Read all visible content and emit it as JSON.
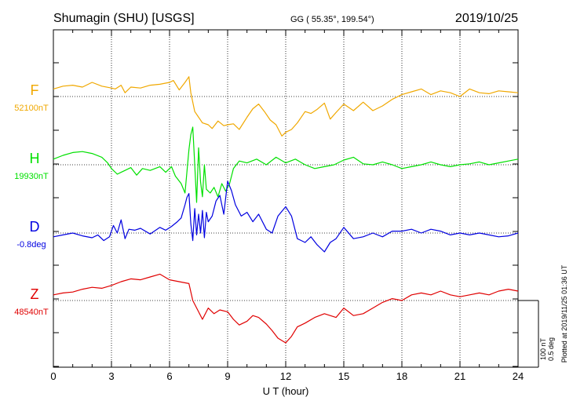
{
  "header": {
    "station": "Shumagin (SHU)  [USGS]",
    "coords": "GG ( 55.35°, 199.54°)",
    "date": "2019/10/25"
  },
  "chart_data": {
    "type": "line",
    "xlabel": "U T (hour)",
    "xlim": [
      0,
      24
    ],
    "xticks": [
      "0",
      "3",
      "6",
      "9",
      "12",
      "15",
      "18",
      "21",
      "24"
    ],
    "grid": true,
    "scale_bar": {
      "label1": "100 nT",
      "label2": "0.5 deg"
    },
    "plotted_note": "Plotted at 2019/11/25 01:36 UT",
    "series": [
      {
        "name": "F",
        "baseline_label": "52100nT",
        "color": "#f0a800",
        "x": [
          0,
          0.5,
          1,
          1.5,
          2,
          2.5,
          3,
          3.2,
          3.5,
          3.7,
          4,
          4.5,
          5,
          5.5,
          6,
          6.2,
          6.5,
          6.8,
          7,
          7.1,
          7.3,
          7.5,
          7.7,
          8,
          8.2,
          8.5,
          8.8,
          9,
          9.3,
          9.6,
          10,
          10.3,
          10.6,
          10.9,
          11.2,
          11.5,
          11.8,
          12,
          12.3,
          12.6,
          13,
          13.3,
          13.6,
          14,
          14.3,
          14.6,
          15,
          15.5,
          16,
          16.5,
          17,
          17.5,
          18,
          18.5,
          19,
          19.5,
          20,
          20.5,
          21,
          21.5,
          22,
          22.5,
          23,
          23.5,
          24
        ],
        "values": [
          8,
          11,
          12,
          10,
          15,
          11,
          9,
          8,
          12,
          4,
          10,
          9,
          12,
          13,
          15,
          17,
          7,
          15,
          21,
          4,
          -16,
          -22,
          -28,
          -30,
          -34,
          -26,
          -31,
          -30,
          -29,
          -35,
          -22,
          -13,
          -8,
          -16,
          -25,
          -30,
          -42,
          -38,
          -35,
          -28,
          -16,
          -18,
          -14,
          -7,
          -24,
          -17,
          -8,
          -15,
          -6,
          -15,
          -10,
          -3,
          2,
          5,
          8,
          2,
          6,
          4,
          0,
          8,
          4,
          3,
          6,
          5,
          4
        ]
      },
      {
        "name": "H",
        "baseline_label": "19930nT",
        "color": "#00e000",
        "x": [
          0,
          0.5,
          1,
          1.5,
          2,
          2.5,
          2.8,
          3,
          3.3,
          3.5,
          3.7,
          4,
          4.3,
          4.6,
          5,
          5.5,
          5.8,
          6.1,
          6.3,
          6.6,
          6.8,
          7,
          7.1,
          7.2,
          7.3,
          7.4,
          7.5,
          7.6,
          7.7,
          7.8,
          7.9,
          8.1,
          8.3,
          8.5,
          8.7,
          8.9,
          9.1,
          9.3,
          9.6,
          10,
          10.5,
          11,
          11.5,
          12,
          12.5,
          13,
          13.5,
          14,
          14.5,
          15,
          15.5,
          16,
          16.5,
          17,
          17.5,
          18,
          18.5,
          19,
          19.5,
          20,
          20.5,
          21,
          21.5,
          22,
          22.5,
          23,
          23.5,
          24
        ],
        "values": [
          6,
          10,
          13,
          14,
          12,
          8,
          2,
          -4,
          -10,
          -8,
          -6,
          -3,
          -11,
          -4,
          -6,
          -2,
          -8,
          -2,
          -12,
          -20,
          -30,
          16,
          32,
          40,
          0,
          -40,
          18,
          -18,
          -34,
          0,
          -26,
          -30,
          -24,
          -34,
          -20,
          -28,
          -20,
          -4,
          4,
          2,
          6,
          0,
          8,
          2,
          6,
          0,
          -4,
          -2,
          0,
          5,
          8,
          1,
          0,
          3,
          0,
          -4,
          -2,
          0,
          3,
          0,
          -2,
          0,
          1,
          3,
          0,
          2,
          4,
          6
        ]
      },
      {
        "name": "D",
        "baseline_label": "-0.8deg",
        "color": "#0000e0",
        "x": [
          0,
          0.5,
          1,
          1.5,
          2,
          2.3,
          2.6,
          2.9,
          3.1,
          3.3,
          3.5,
          3.7,
          3.9,
          4.2,
          4.5,
          5,
          5.5,
          5.8,
          6.1,
          6.4,
          6.6,
          6.8,
          6.9,
          7,
          7.1,
          7.2,
          7.3,
          7.4,
          7.5,
          7.6,
          7.7,
          7.8,
          7.9,
          8,
          8.2,
          8.4,
          8.6,
          8.8,
          9,
          9.2,
          9.4,
          9.7,
          10,
          10.3,
          10.6,
          11,
          11.3,
          11.6,
          12,
          12.3,
          12.6,
          13,
          13.3,
          13.6,
          14,
          14.3,
          14.6,
          15,
          15.5,
          16,
          16.5,
          17,
          17.5,
          18,
          18.5,
          19,
          19.5,
          20,
          20.5,
          21,
          21.5,
          22,
          22.5,
          23,
          23.5,
          24
        ],
        "values": [
          -4,
          -2,
          0,
          -3,
          -5,
          -2,
          -8,
          -4,
          8,
          0,
          14,
          -6,
          4,
          3,
          5,
          -1,
          6,
          3,
          7,
          12,
          16,
          30,
          38,
          42,
          10,
          -8,
          26,
          -2,
          20,
          0,
          24,
          -5,
          22,
          12,
          18,
          34,
          40,
          20,
          55,
          45,
          30,
          18,
          22,
          12,
          20,
          4,
          0,
          18,
          28,
          18,
          -6,
          -10,
          -4,
          -12,
          -20,
          -10,
          -6,
          6,
          -6,
          -4,
          0,
          -4,
          2,
          2,
          4,
          0,
          4,
          2,
          -2,
          0,
          -2,
          0,
          -2,
          -4,
          -3,
          0
        ]
      },
      {
        "name": "Z",
        "baseline_label": "48540nT",
        "color": "#e00000",
        "x": [
          0,
          0.5,
          1,
          1.5,
          2,
          2.5,
          3,
          3.5,
          4,
          4.5,
          5,
          5.5,
          6,
          6.5,
          7,
          7.2,
          7.5,
          7.7,
          8,
          8.3,
          8.6,
          9,
          9.3,
          9.6,
          10,
          10.3,
          10.6,
          11,
          11.3,
          11.6,
          12,
          12.3,
          12.6,
          13,
          13.5,
          14,
          14.3,
          14.6,
          15,
          15.5,
          16,
          16.5,
          17,
          17.5,
          18,
          18.5,
          19,
          19.5,
          20,
          20.5,
          21,
          21.5,
          22,
          22.5,
          23,
          23.5,
          24
        ],
        "values": [
          6,
          8,
          9,
          12,
          14,
          13,
          16,
          20,
          23,
          22,
          25,
          28,
          22,
          20,
          18,
          0,
          -12,
          -20,
          -8,
          -14,
          -10,
          -12,
          -20,
          -26,
          -22,
          -16,
          -18,
          -25,
          -32,
          -40,
          -45,
          -38,
          -28,
          -24,
          -18,
          -14,
          -16,
          -18,
          -8,
          -16,
          -14,
          -8,
          -2,
          2,
          0,
          6,
          8,
          6,
          10,
          6,
          4,
          6,
          8,
          6,
          10,
          12,
          10
        ]
      }
    ]
  }
}
